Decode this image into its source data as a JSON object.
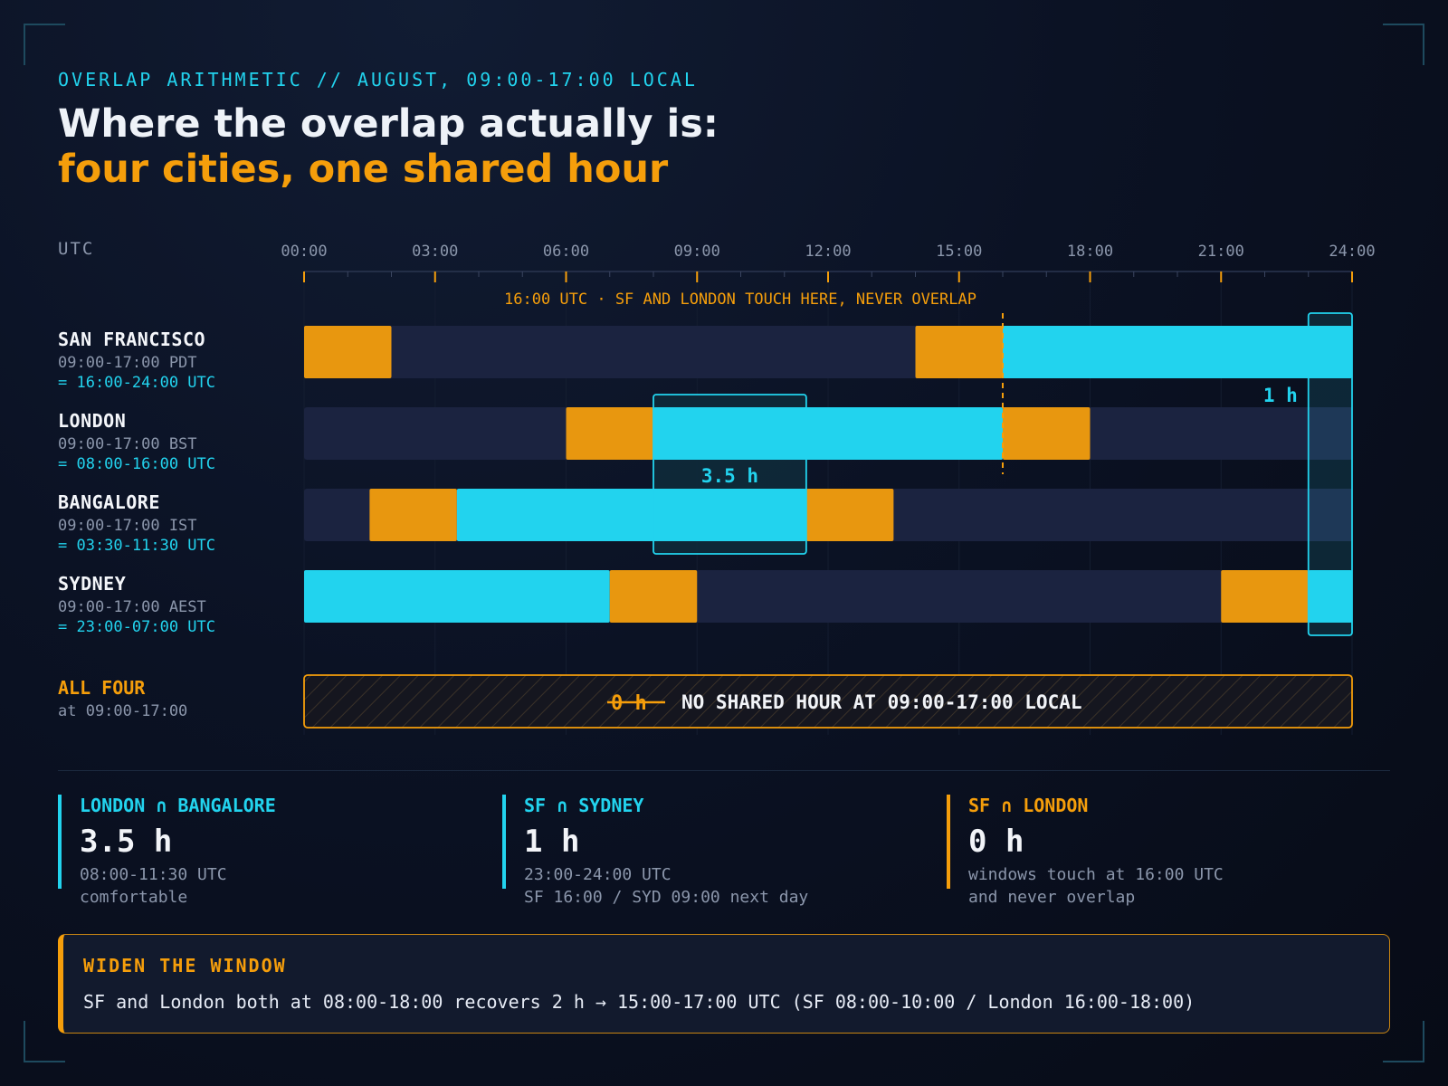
{
  "header": {
    "kicker": "OVERLAP ARITHMETIC // AUGUST, 09:00-17:00 LOCAL",
    "title_line1": "Where the overlap actually is:",
    "title_line2": "four cities, one shared hour"
  },
  "colors": {
    "cyan": "#22d3ee",
    "amber": "#f59e0b",
    "track": "#1b2340",
    "background": "#0b1224"
  },
  "chart_data": {
    "type": "gantt",
    "axis_label": "UTC",
    "x_range": [
      0,
      24
    ],
    "tick_labels": [
      "00:00",
      "03:00",
      "06:00",
      "09:00",
      "12:00",
      "15:00",
      "18:00",
      "21:00",
      "24:00"
    ],
    "ticks": [
      0,
      3,
      6,
      9,
      12,
      15,
      18,
      21,
      24
    ],
    "rows": [
      {
        "name": "SAN FRANCISCO",
        "local": "09:00-17:00 PDT",
        "utc": "= 16:00-24:00 UTC",
        "segments": [
          {
            "start": 0,
            "end": 2,
            "kind": "amber"
          },
          {
            "start": 14,
            "end": 16,
            "kind": "amber"
          },
          {
            "start": 16,
            "end": 24,
            "kind": "cyan"
          }
        ]
      },
      {
        "name": "LONDON",
        "local": "09:00-17:00 BST",
        "utc": "= 08:00-16:00 UTC",
        "segments": [
          {
            "start": 6,
            "end": 8,
            "kind": "amber"
          },
          {
            "start": 8,
            "end": 16,
            "kind": "cyan"
          },
          {
            "start": 16,
            "end": 18,
            "kind": "amber"
          }
        ]
      },
      {
        "name": "BANGALORE",
        "local": "09:00-17:00 IST",
        "utc": "= 03:30-11:30 UTC",
        "segments": [
          {
            "start": 1.5,
            "end": 3.5,
            "kind": "amber"
          },
          {
            "start": 3.5,
            "end": 11.5,
            "kind": "cyan"
          },
          {
            "start": 11.5,
            "end": 13.5,
            "kind": "amber"
          }
        ]
      },
      {
        "name": "SYDNEY",
        "local": "09:00-17:00 AEST",
        "utc": "= 23:00-07:00 UTC",
        "segments": [
          {
            "start": 0,
            "end": 7,
            "kind": "cyan"
          },
          {
            "start": 7,
            "end": 9,
            "kind": "amber"
          },
          {
            "start": 21,
            "end": 23,
            "kind": "amber"
          },
          {
            "start": 23,
            "end": 24,
            "kind": "cyan"
          }
        ]
      }
    ],
    "overlaps": [
      {
        "start": 8,
        "end": 11.5,
        "label": "3.5 h",
        "rows": [
          "LONDON",
          "BANGALORE"
        ]
      },
      {
        "start": 23,
        "end": 24,
        "label": "1 h",
        "rows": [
          "SAN FRANCISCO",
          "SYDNEY"
        ]
      }
    ],
    "marker": {
      "x": 16,
      "label": "16:00 UTC · SF AND LONDON TOUCH HERE, NEVER OVERLAP"
    },
    "all_four": {
      "label": "ALL FOUR",
      "sublabel": "at 09:00-17:00",
      "struck_value": "0 h",
      "message": "NO SHARED HOUR AT 09:00-17:00 LOCAL"
    }
  },
  "cards": [
    {
      "title": "LONDON ∩ BANGALORE",
      "value": "3.5 h",
      "line1": "08:00-11:30 UTC",
      "line2": "comfortable"
    },
    {
      "title": "SF ∩ SYDNEY",
      "value": "1 h",
      "line1": "23:00-24:00 UTC",
      "line2": "SF 16:00 / SYD 09:00 next day"
    },
    {
      "title": "SF ∩ LONDON",
      "value": "0 h",
      "line1": "windows touch at 16:00 UTC",
      "line2": "and never overlap"
    }
  ],
  "widen": {
    "title": "WIDEN THE WINDOW",
    "text": "SF and London both at 08:00-18:00 recovers 2 h → 15:00-17:00 UTC (SF 08:00-10:00 / London 16:00-18:00)"
  }
}
